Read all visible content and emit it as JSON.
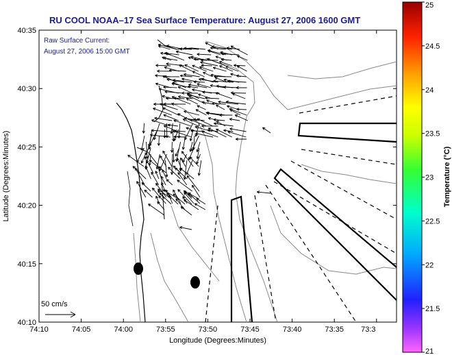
{
  "chart_data": {
    "type": "map",
    "title": "RU COOL  NOAA–17  Sea Surface Temperature:  August 27, 2006 1600 GMT",
    "xlabel": "Longitude (Degrees:Minutes)",
    "ylabel": "Latitude (Degrees:Minutes)",
    "x_ticks": [
      "74:10",
      "74:05",
      "74:00",
      "73:55",
      "73:50",
      "73:45",
      "73:40",
      "73:35",
      "73:3"
    ],
    "y_ticks": [
      "40:35",
      "40:30",
      "40:25",
      "40:20",
      "40:15",
      "40:10"
    ],
    "annotation_lines": [
      "Raw Surface Current:",
      "August 27, 2006 15:00 GMT"
    ],
    "scale_label": "50 cm/s",
    "colorbar": {
      "label": "Temperature (°C)",
      "ticks": [
        "25",
        "24.5",
        "24",
        "23.5",
        "23",
        "22.5",
        "22",
        "21.5",
        "21"
      ],
      "range": [
        21,
        25
      ]
    }
  }
}
